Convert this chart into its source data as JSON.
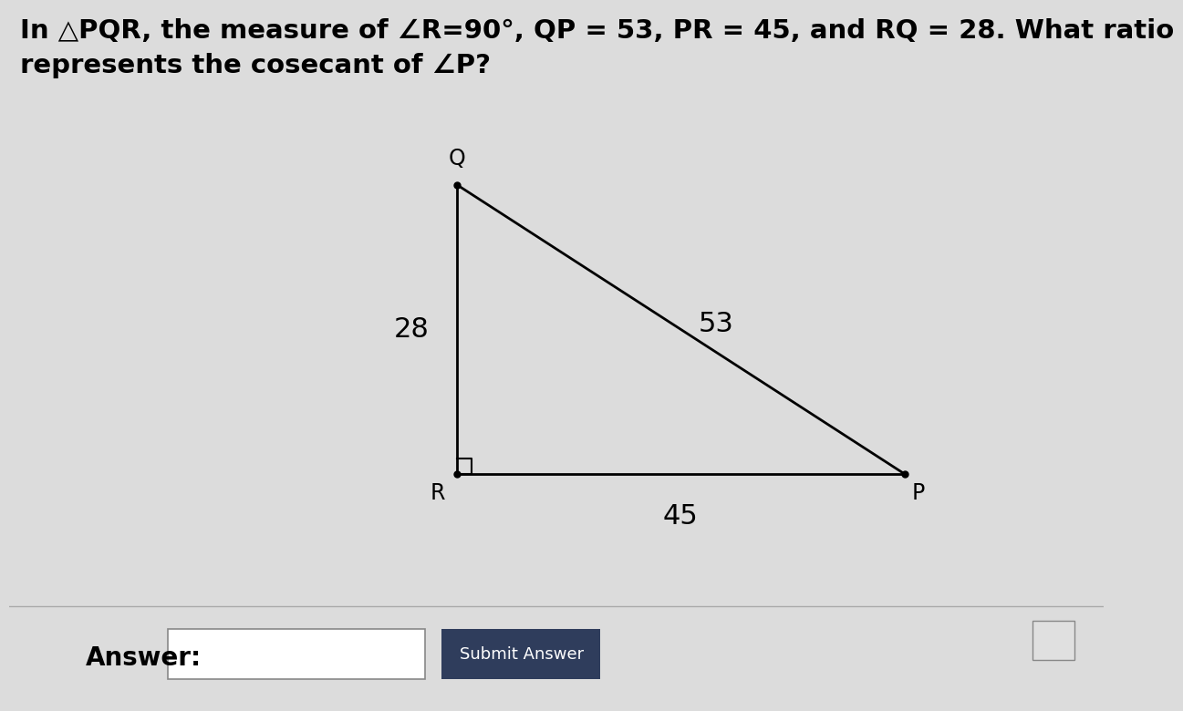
{
  "title_line1": "In △PQR, the measure of ∠R=90°, QP = 53, PR = 45, and RQ = 28. What ratio",
  "title_line2": "represents the cosecant of ∠P?",
  "background_color": "#dcdcdc",
  "vertex_labels": {
    "Q": "Q",
    "R": "R",
    "P": "P"
  },
  "side_labels": {
    "QR": "28",
    "QP": "53",
    "RP": "45"
  },
  "answer_label": "Answer:",
  "submit_label": "Submit Answer",
  "submit_color": "#2f3d5c",
  "line_color": "#000000",
  "font_size_title": 21,
  "font_size_labels": 17,
  "font_size_side": 22,
  "font_size_answer": 20
}
